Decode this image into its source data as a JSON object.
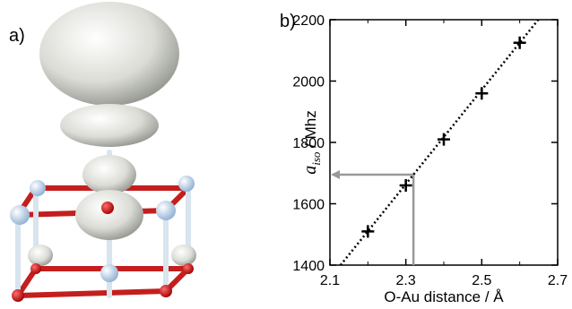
{
  "panel_labels": [
    "a)",
    "b)"
  ],
  "chart_data": {
    "type": "scatter",
    "xlabel": "O-Au distance / Å",
    "ylabel_parts": [
      "a",
      "iso",
      " / Mhz"
    ],
    "series": [
      {
        "color": "#000000",
        "x": [
          2.2,
          2.3,
          2.4,
          2.5,
          2.6
        ],
        "values": [
          1510,
          1660,
          1810,
          1960,
          2125
        ]
      }
    ],
    "fit": {
      "color": "#000000",
      "x": [
        2.128,
        2.649
      ],
      "values": [
        1400,
        2200
      ]
    },
    "reference": {
      "color": "#999999",
      "x": 2.32,
      "y": 1695
    },
    "xlim": [
      2.1,
      2.7
    ],
    "xticks": [
      2.1,
      2.3,
      2.5,
      2.7
    ],
    "xminor": [
      2.2,
      2.4,
      2.6
    ],
    "ylim": [
      1400,
      2200
    ],
    "yticks": [
      1400,
      1600,
      1800,
      2000,
      2200
    ]
  }
}
